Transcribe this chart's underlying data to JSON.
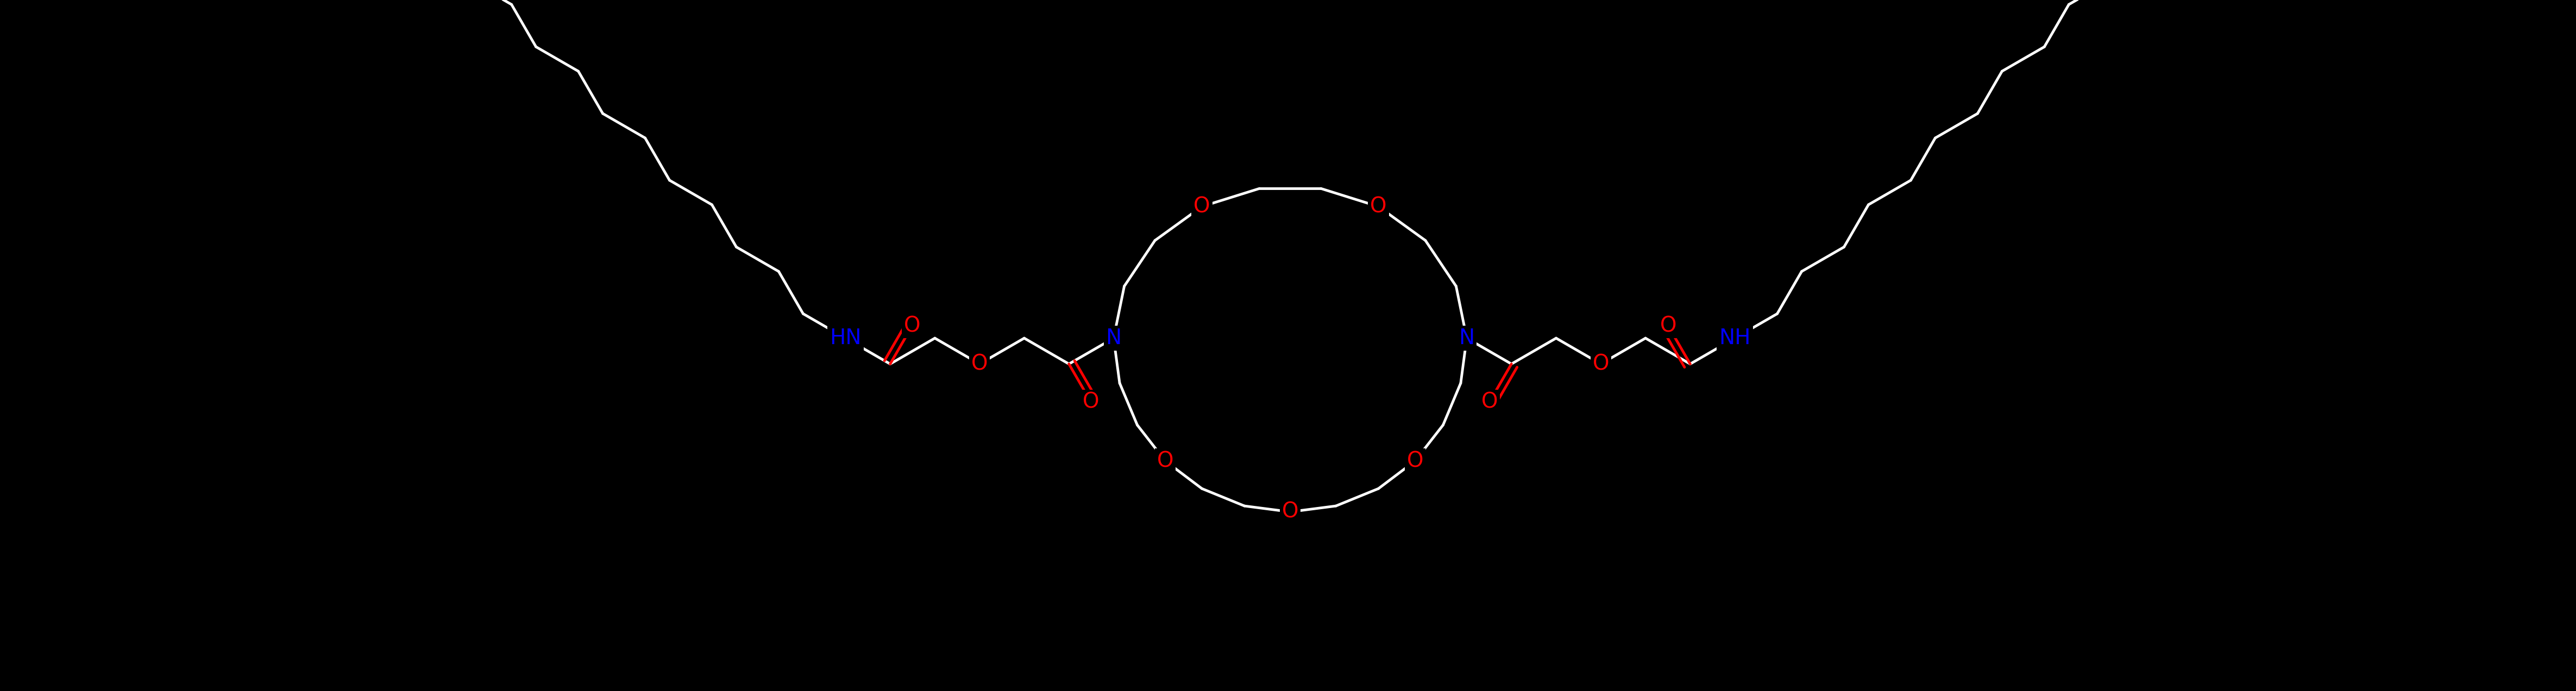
{
  "bg_color": "#000000",
  "bond_color": "#ffffff",
  "O_color": "#ff0000",
  "N_color": "#0000ff",
  "line_width": 3.5,
  "font_size": 28,
  "fig_width": 47.42,
  "fig_height": 12.73,
  "xlim": [
    0,
    4742
  ],
  "ylim": [
    0,
    1273
  ]
}
